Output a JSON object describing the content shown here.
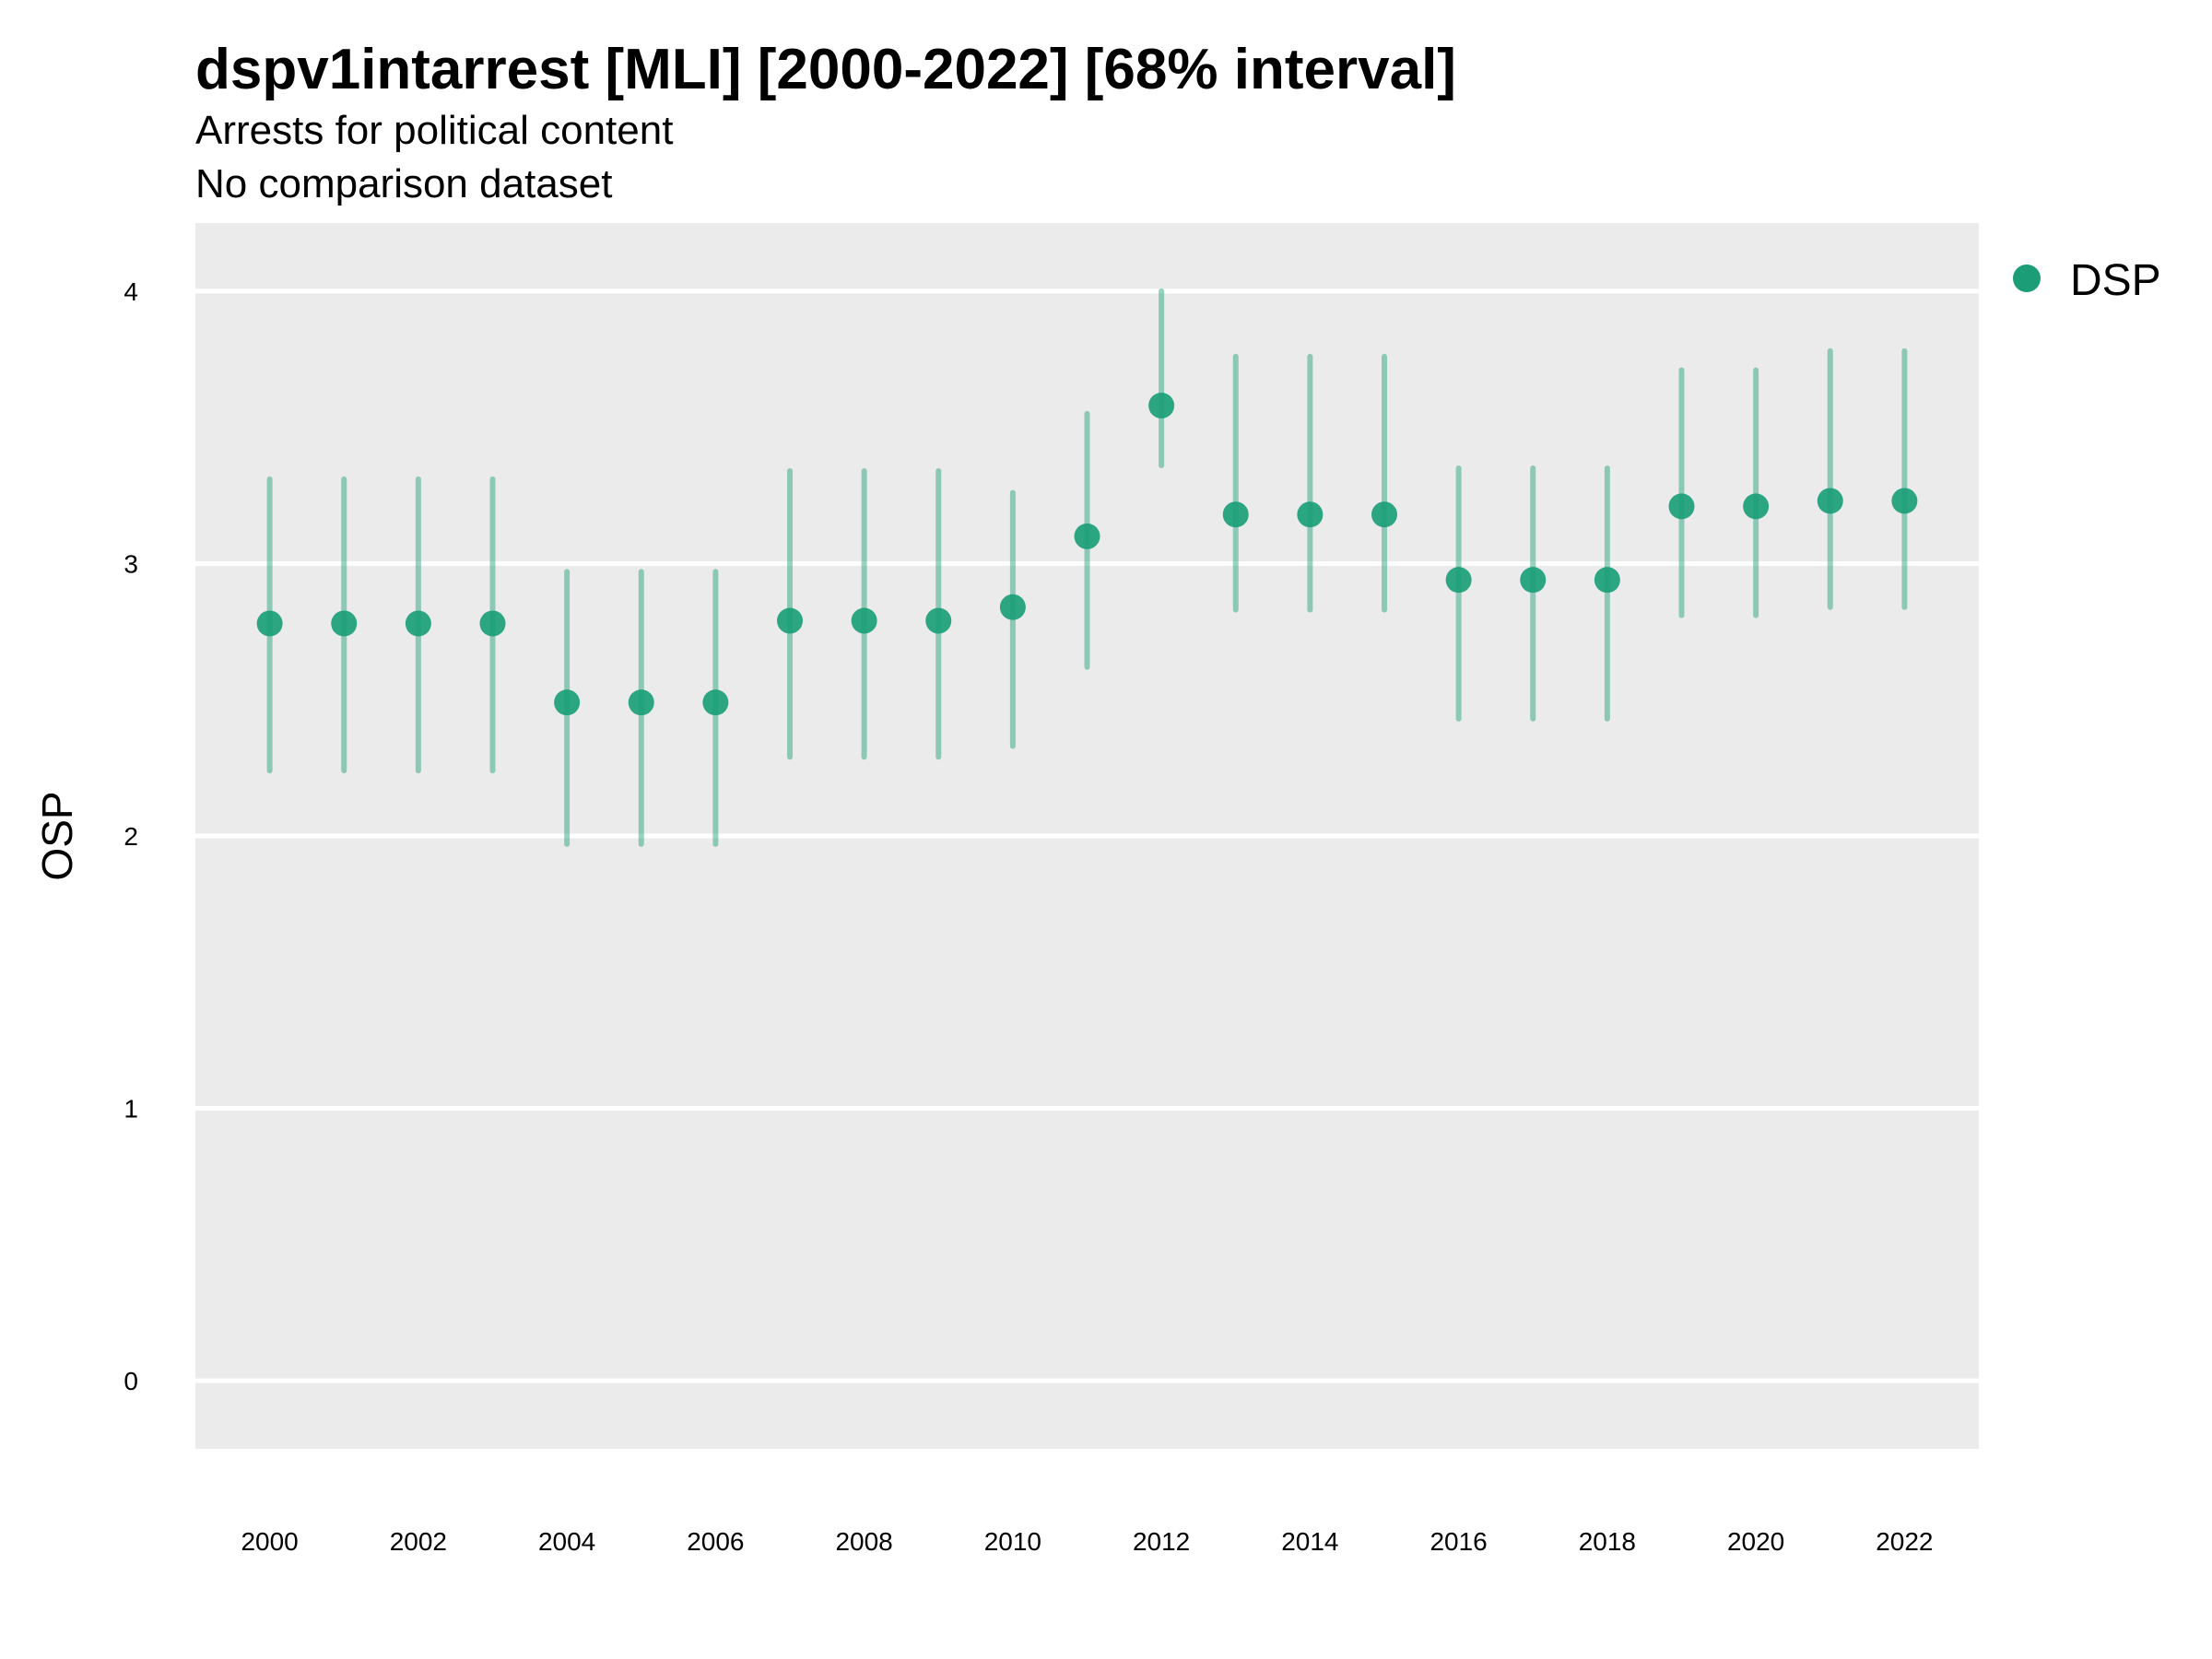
{
  "chart_data": {
    "type": "scatter",
    "title": "dspv1intarrest [MLI] [2000-2022] [68% interval]",
    "subtitle": "Arrests for political content",
    "comparison_note": "No comparison dataset",
    "xlabel": "",
    "ylabel": "OSP",
    "ylim": [
      -0.25,
      4.25
    ],
    "xlim": [
      1999,
      2023
    ],
    "y_ticks": [
      0,
      1,
      2,
      3,
      4
    ],
    "y_tick_labels": [
      "0",
      "1",
      "2",
      "3",
      "4"
    ],
    "x_ticks": [
      2000,
      2002,
      2004,
      2006,
      2008,
      2010,
      2012,
      2014,
      2016,
      2018,
      2020,
      2022
    ],
    "x_tick_labels": [
      "2000",
      "2002",
      "2004",
      "2006",
      "2008",
      "2010",
      "2012",
      "2014",
      "2016",
      "2018",
      "2020",
      "2022"
    ],
    "grid": true,
    "legend": {
      "position": "top-right",
      "entries": [
        "DSP"
      ]
    },
    "series": [
      {
        "name": "DSP",
        "color": "#1b9e77",
        "x": [
          2000,
          2001,
          2002,
          2003,
          2004,
          2005,
          2006,
          2007,
          2008,
          2009,
          2010,
          2011,
          2012,
          2013,
          2014,
          2015,
          2016,
          2017,
          2018,
          2019,
          2020,
          2021,
          2022
        ],
        "y": [
          2.78,
          2.78,
          2.78,
          2.78,
          2.49,
          2.49,
          2.49,
          2.79,
          2.79,
          2.79,
          2.84,
          3.1,
          3.58,
          3.18,
          3.18,
          3.18,
          2.94,
          2.94,
          2.94,
          3.21,
          3.21,
          3.23,
          3.23
        ],
        "lower": [
          2.24,
          2.24,
          2.24,
          2.24,
          1.97,
          1.97,
          1.97,
          2.29,
          2.29,
          2.29,
          2.33,
          2.62,
          3.36,
          2.83,
          2.83,
          2.83,
          2.43,
          2.43,
          2.43,
          2.81,
          2.81,
          2.84,
          2.84
        ],
        "upper": [
          3.31,
          3.31,
          3.31,
          3.31,
          2.97,
          2.97,
          2.97,
          3.34,
          3.34,
          3.34,
          3.26,
          3.55,
          4.0,
          3.76,
          3.76,
          3.76,
          3.35,
          3.35,
          3.35,
          3.71,
          3.71,
          3.78,
          3.78
        ]
      }
    ]
  }
}
